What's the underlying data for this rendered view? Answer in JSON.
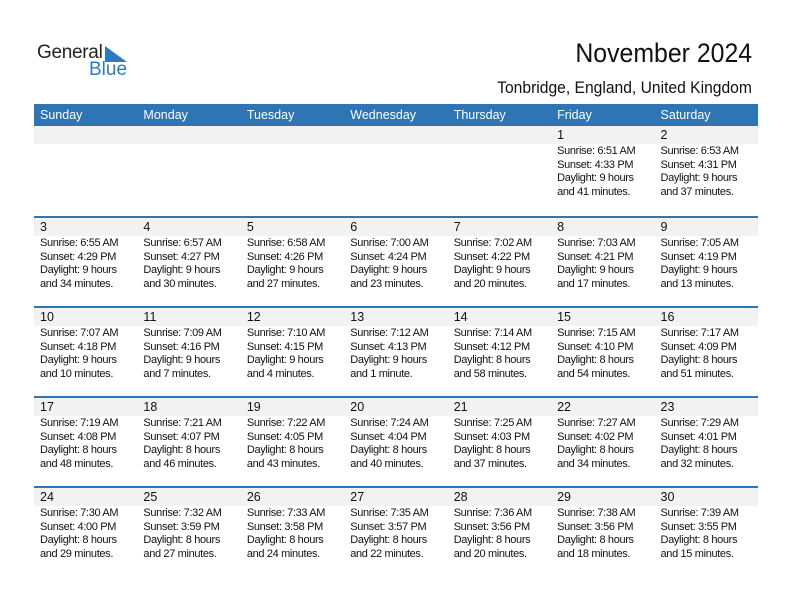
{
  "logo": {
    "text1": "General",
    "text2": "Blue",
    "color": "#2a7bc2"
  },
  "header": {
    "title": "November 2024",
    "location": "Tonbridge, England, United Kingdom"
  },
  "colors": {
    "header_bg": "#2e75b6",
    "date_band": "#f2f2f2"
  },
  "weekdays": [
    "Sunday",
    "Monday",
    "Tuesday",
    "Wednesday",
    "Thursday",
    "Friday",
    "Saturday"
  ],
  "weeks": [
    [
      null,
      null,
      null,
      null,
      null,
      {
        "day": "1",
        "sunrise": "Sunrise: 6:51 AM",
        "sunset": "Sunset: 4:33 PM",
        "daylight1": "Daylight: 9 hours",
        "daylight2": "and 41 minutes."
      },
      {
        "day": "2",
        "sunrise": "Sunrise: 6:53 AM",
        "sunset": "Sunset: 4:31 PM",
        "daylight1": "Daylight: 9 hours",
        "daylight2": "and 37 minutes."
      }
    ],
    [
      {
        "day": "3",
        "sunrise": "Sunrise: 6:55 AM",
        "sunset": "Sunset: 4:29 PM",
        "daylight1": "Daylight: 9 hours",
        "daylight2": "and 34 minutes."
      },
      {
        "day": "4",
        "sunrise": "Sunrise: 6:57 AM",
        "sunset": "Sunset: 4:27 PM",
        "daylight1": "Daylight: 9 hours",
        "daylight2": "and 30 minutes."
      },
      {
        "day": "5",
        "sunrise": "Sunrise: 6:58 AM",
        "sunset": "Sunset: 4:26 PM",
        "daylight1": "Daylight: 9 hours",
        "daylight2": "and 27 minutes."
      },
      {
        "day": "6",
        "sunrise": "Sunrise: 7:00 AM",
        "sunset": "Sunset: 4:24 PM",
        "daylight1": "Daylight: 9 hours",
        "daylight2": "and 23 minutes."
      },
      {
        "day": "7",
        "sunrise": "Sunrise: 7:02 AM",
        "sunset": "Sunset: 4:22 PM",
        "daylight1": "Daylight: 9 hours",
        "daylight2": "and 20 minutes."
      },
      {
        "day": "8",
        "sunrise": "Sunrise: 7:03 AM",
        "sunset": "Sunset: 4:21 PM",
        "daylight1": "Daylight: 9 hours",
        "daylight2": "and 17 minutes."
      },
      {
        "day": "9",
        "sunrise": "Sunrise: 7:05 AM",
        "sunset": "Sunset: 4:19 PM",
        "daylight1": "Daylight: 9 hours",
        "daylight2": "and 13 minutes."
      }
    ],
    [
      {
        "day": "10",
        "sunrise": "Sunrise: 7:07 AM",
        "sunset": "Sunset: 4:18 PM",
        "daylight1": "Daylight: 9 hours",
        "daylight2": "and 10 minutes."
      },
      {
        "day": "11",
        "sunrise": "Sunrise: 7:09 AM",
        "sunset": "Sunset: 4:16 PM",
        "daylight1": "Daylight: 9 hours",
        "daylight2": "and 7 minutes."
      },
      {
        "day": "12",
        "sunrise": "Sunrise: 7:10 AM",
        "sunset": "Sunset: 4:15 PM",
        "daylight1": "Daylight: 9 hours",
        "daylight2": "and 4 minutes."
      },
      {
        "day": "13",
        "sunrise": "Sunrise: 7:12 AM",
        "sunset": "Sunset: 4:13 PM",
        "daylight1": "Daylight: 9 hours",
        "daylight2": "and 1 minute."
      },
      {
        "day": "14",
        "sunrise": "Sunrise: 7:14 AM",
        "sunset": "Sunset: 4:12 PM",
        "daylight1": "Daylight: 8 hours",
        "daylight2": "and 58 minutes."
      },
      {
        "day": "15",
        "sunrise": "Sunrise: 7:15 AM",
        "sunset": "Sunset: 4:10 PM",
        "daylight1": "Daylight: 8 hours",
        "daylight2": "and 54 minutes."
      },
      {
        "day": "16",
        "sunrise": "Sunrise: 7:17 AM",
        "sunset": "Sunset: 4:09 PM",
        "daylight1": "Daylight: 8 hours",
        "daylight2": "and 51 minutes."
      }
    ],
    [
      {
        "day": "17",
        "sunrise": "Sunrise: 7:19 AM",
        "sunset": "Sunset: 4:08 PM",
        "daylight1": "Daylight: 8 hours",
        "daylight2": "and 48 minutes."
      },
      {
        "day": "18",
        "sunrise": "Sunrise: 7:21 AM",
        "sunset": "Sunset: 4:07 PM",
        "daylight1": "Daylight: 8 hours",
        "daylight2": "and 46 minutes."
      },
      {
        "day": "19",
        "sunrise": "Sunrise: 7:22 AM",
        "sunset": "Sunset: 4:05 PM",
        "daylight1": "Daylight: 8 hours",
        "daylight2": "and 43 minutes."
      },
      {
        "day": "20",
        "sunrise": "Sunrise: 7:24 AM",
        "sunset": "Sunset: 4:04 PM",
        "daylight1": "Daylight: 8 hours",
        "daylight2": "and 40 minutes."
      },
      {
        "day": "21",
        "sunrise": "Sunrise: 7:25 AM",
        "sunset": "Sunset: 4:03 PM",
        "daylight1": "Daylight: 8 hours",
        "daylight2": "and 37 minutes."
      },
      {
        "day": "22",
        "sunrise": "Sunrise: 7:27 AM",
        "sunset": "Sunset: 4:02 PM",
        "daylight1": "Daylight: 8 hours",
        "daylight2": "and 34 minutes."
      },
      {
        "day": "23",
        "sunrise": "Sunrise: 7:29 AM",
        "sunset": "Sunset: 4:01 PM",
        "daylight1": "Daylight: 8 hours",
        "daylight2": "and 32 minutes."
      }
    ],
    [
      {
        "day": "24",
        "sunrise": "Sunrise: 7:30 AM",
        "sunset": "Sunset: 4:00 PM",
        "daylight1": "Daylight: 8 hours",
        "daylight2": "and 29 minutes."
      },
      {
        "day": "25",
        "sunrise": "Sunrise: 7:32 AM",
        "sunset": "Sunset: 3:59 PM",
        "daylight1": "Daylight: 8 hours",
        "daylight2": "and 27 minutes."
      },
      {
        "day": "26",
        "sunrise": "Sunrise: 7:33 AM",
        "sunset": "Sunset: 3:58 PM",
        "daylight1": "Daylight: 8 hours",
        "daylight2": "and 24 minutes."
      },
      {
        "day": "27",
        "sunrise": "Sunrise: 7:35 AM",
        "sunset": "Sunset: 3:57 PM",
        "daylight1": "Daylight: 8 hours",
        "daylight2": "and 22 minutes."
      },
      {
        "day": "28",
        "sunrise": "Sunrise: 7:36 AM",
        "sunset": "Sunset: 3:56 PM",
        "daylight1": "Daylight: 8 hours",
        "daylight2": "and 20 minutes."
      },
      {
        "day": "29",
        "sunrise": "Sunrise: 7:38 AM",
        "sunset": "Sunset: 3:56 PM",
        "daylight1": "Daylight: 8 hours",
        "daylight2": "and 18 minutes."
      },
      {
        "day": "30",
        "sunrise": "Sunrise: 7:39 AM",
        "sunset": "Sunset: 3:55 PM",
        "daylight1": "Daylight: 8 hours",
        "daylight2": "and 15 minutes."
      }
    ]
  ]
}
